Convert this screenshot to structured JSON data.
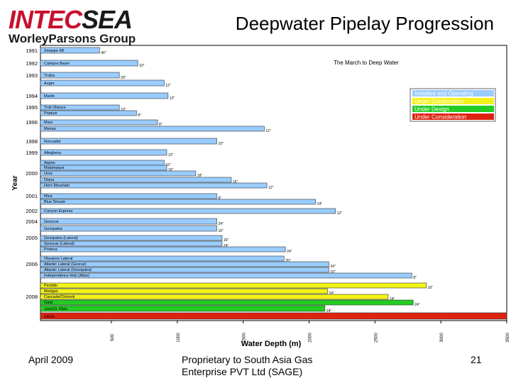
{
  "header": {
    "logo_top_a": "INTEC",
    "logo_top_b": "SEA",
    "logo_bottom": "WorleyParsons Group",
    "title": "Deepwater Pipelay Progression"
  },
  "footer": {
    "date": "April 2009",
    "line1": "Proprietary to South Asia Gas",
    "line2": "Enterprise PVT Ltd (SAGE)",
    "page": "21"
  },
  "chart_data": {
    "type": "bar",
    "orientation": "horizontal",
    "title": "Deepwater Pipelay Progression",
    "subtitle": "The March to Deep Water",
    "xlabel": "Water Depth (m)",
    "ylabel": "Year",
    "xlim": [
      0,
      3500
    ],
    "xticks": [
      500,
      1000,
      1500,
      2000,
      2500,
      3000,
      3500
    ],
    "legend_position": "right",
    "legend": [
      {
        "label": "Installed and Operating",
        "color": "#99ccff"
      },
      {
        "label": "Under Construction",
        "color": "#f2f21a"
      },
      {
        "label": "Under Design",
        "color": "#22cc22"
      },
      {
        "label": "Under Consideration",
        "color": "#dd2211"
      }
    ],
    "bars": [
      {
        "year": "1991",
        "name": "Zeepipe IIB",
        "size": "40\"",
        "depth": 410,
        "status": "installed"
      },
      {
        "year": "1992",
        "name": "Campos Basin",
        "size": "10\"",
        "depth": 700,
        "status": "installed"
      },
      {
        "year": "1993",
        "name": "Troika",
        "size": "20\"",
        "depth": 560,
        "status": "installed"
      },
      {
        "year": "",
        "name": "Auger",
        "size": "12\"",
        "depth": 900,
        "status": "installed"
      },
      {
        "year": "1994",
        "name": "Marlin",
        "size": "12\"",
        "depth": 930,
        "status": "installed"
      },
      {
        "year": "1995",
        "name": "Troll Oliance",
        "size": "10\"",
        "depth": 560,
        "status": "installed"
      },
      {
        "year": "",
        "name": "Popeye",
        "size": "8\"",
        "depth": 690,
        "status": "installed"
      },
      {
        "year": "1996",
        "name": "Mars",
        "size": "8\"",
        "depth": 850,
        "status": "installed"
      },
      {
        "year": "",
        "name": "Mensa",
        "size": "12\"",
        "depth": 1660,
        "status": "installed"
      },
      {
        "year": "1998",
        "name": "Roncador",
        "size": "10\"",
        "depth": 1300,
        "status": "installed"
      },
      {
        "year": "1999",
        "name": "Allegheny",
        "size": "12\"",
        "depth": 920,
        "status": "installed"
      },
      {
        "year": "",
        "name": "Aspira",
        "size": "10\"",
        "depth": 900,
        "status": "installed"
      },
      {
        "year": "",
        "name": "Malampaya",
        "size": "16\"",
        "depth": 920,
        "status": "installed"
      },
      {
        "year": "2000",
        "name": "Ursa",
        "size": "18\"",
        "depth": 1140,
        "status": "installed"
      },
      {
        "year": "",
        "name": "Diana",
        "size": "16\"",
        "depth": 1410,
        "status": "installed"
      },
      {
        "year": "",
        "name": "Horn Mountain",
        "size": "12\"",
        "depth": 1680,
        "status": "installed"
      },
      {
        "year": "2001",
        "name": "Mica",
        "size": "8\"",
        "depth": 1300,
        "status": "installed"
      },
      {
        "year": "",
        "name": "Blue Stream",
        "size": "24\"",
        "depth": 2050,
        "status": "installed"
      },
      {
        "year": "2002",
        "name": "Canyon Express",
        "size": "12\"",
        "depth": 2200,
        "status": "installed"
      },
      {
        "year": "2004",
        "name": "Gesocar",
        "size": "24\"",
        "depth": 1300,
        "status": "installed"
      },
      {
        "year": "",
        "name": "Gesopatra",
        "size": "16\"",
        "depth": 1300,
        "status": "installed"
      },
      {
        "year": "2005",
        "name": "Gesopatra (Lateral)",
        "size": "16\"",
        "depth": 1340,
        "status": "installed"
      },
      {
        "year": "",
        "name": "Gesocar (Lateral)",
        "size": "24\"",
        "depth": 1340,
        "status": "installed"
      },
      {
        "year": "",
        "name": "Proteus",
        "size": "24\"",
        "depth": 1820,
        "status": "installed"
      },
      {
        "year": "",
        "name": "Okeanos Lateral",
        "size": "20\"",
        "depth": 1810,
        "status": "installed"
      },
      {
        "year": "2006",
        "name": "Atlantic Lateral (Geocar)",
        "size": "24\"",
        "depth": 2150,
        "status": "installed"
      },
      {
        "year": "",
        "name": "Atlantic Lateral (Gesopatra)",
        "size": "16\"",
        "depth": 2150,
        "status": "installed"
      },
      {
        "year": "",
        "name": "Independence Hub (Atlas)",
        "size": "8\"",
        "depth": 2780,
        "status": "installed"
      },
      {
        "year": "",
        "name": "Perdido",
        "size": "10\"",
        "depth": 2890,
        "status": "construction"
      },
      {
        "year": "",
        "name": "Medgaz",
        "size": "24\"",
        "depth": 2140,
        "status": "construction"
      },
      {
        "year": "2008",
        "name": "Cascade/Chinook",
        "size": "14\"",
        "depth": 2600,
        "status": "construction"
      },
      {
        "year": "",
        "name": "Galsi",
        "size": "24\"",
        "depth": 2790,
        "status": "design"
      },
      {
        "year": "",
        "name": "Jack/St. Malo",
        "size": "24\"",
        "depth": 2120,
        "status": "design"
      },
      {
        "year": "",
        "name": "SAGE",
        "size": "",
        "depth": 3500,
        "status": "consideration"
      }
    ]
  }
}
